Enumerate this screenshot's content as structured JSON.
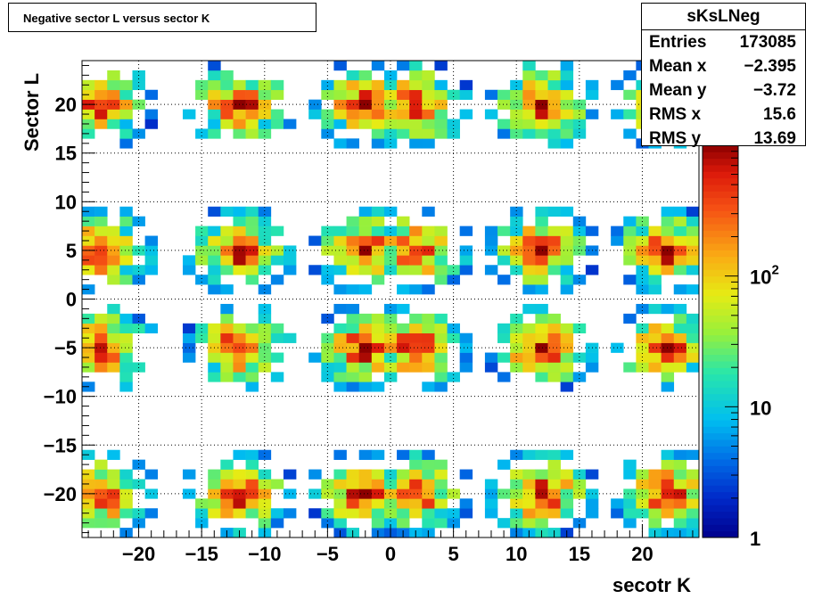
{
  "chart_data": {
    "type": "heatmap",
    "title": "Negative sector L versus sector K",
    "xlabel": "secotr K",
    "ylabel": "Sector L",
    "xlim": [
      -24.5,
      24.5
    ],
    "ylim": [
      -24.5,
      24.5
    ],
    "x_ticks": [
      -20,
      -15,
      -10,
      -5,
      0,
      5,
      10,
      15,
      20
    ],
    "y_ticks": [
      -20,
      -15,
      -10,
      -5,
      0,
      5,
      10,
      15,
      20
    ],
    "color_scale": "log",
    "z_range": [
      1,
      1000
    ],
    "z_ticks": [
      {
        "value": 1,
        "label": "1"
      },
      {
        "value": 10,
        "label": "10"
      },
      {
        "value": 100,
        "label": "10^2"
      }
    ],
    "grid": true,
    "clusters_note_x_centers": [
      -23,
      -12,
      -2,
      2,
      12,
      22
    ],
    "cluster_x_centers": [
      -23,
      -12,
      -2,
      2,
      12,
      22
    ],
    "cluster_y_centers": [
      -20,
      -5,
      5,
      20
    ],
    "stats": {
      "name": "sKsLNeg",
      "entries_label": "Entries",
      "entries": "173085",
      "mean_x_label": "Mean x",
      "mean_x": "−2.395",
      "mean_y_label": "Mean y",
      "mean_y": "−3.72",
      "rms_x_label": "RMS x",
      "rms_x": "15.6",
      "rms_y_label": "RMS y",
      "rms_y": "13.69"
    }
  }
}
